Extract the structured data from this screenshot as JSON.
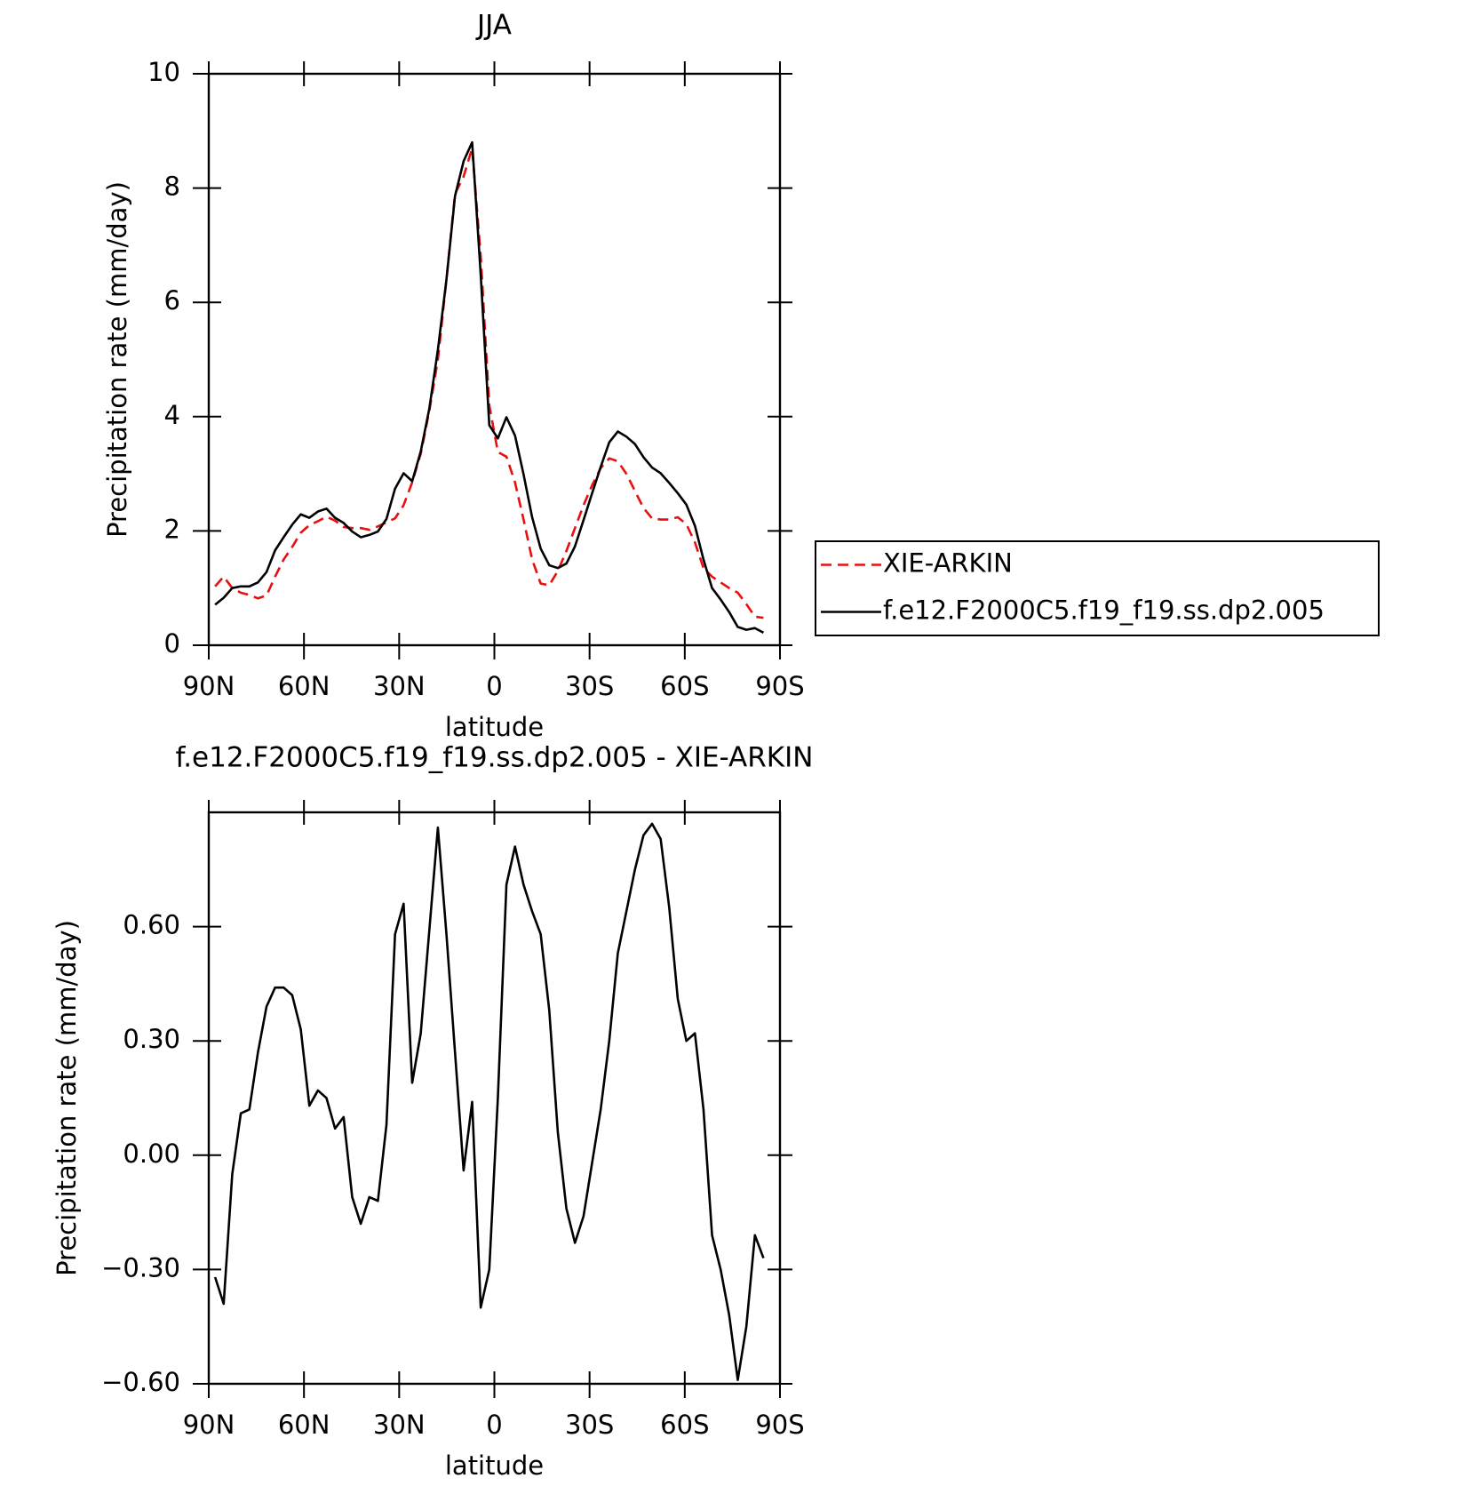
{
  "chart_data": [
    {
      "type": "line",
      "title": "JJA",
      "xlabel": "latitude",
      "ylabel": "Precipitation rate (mm/day)",
      "x": [
        88,
        85.3,
        82.6,
        79.9,
        77.2,
        74.5,
        71.8,
        69.1,
        66.4,
        63.7,
        61,
        58.3,
        55.6,
        52.9,
        50.2,
        47.5,
        44.8,
        42.1,
        39.4,
        36.7,
        34,
        31.3,
        28.6,
        25.9,
        23.2,
        20.5,
        17.8,
        15.1,
        12.4,
        9.7,
        7,
        4.3,
        1.6,
        -1.1,
        -3.8,
        -6.5,
        -9.2,
        -11.9,
        -14.6,
        -17.3,
        -20,
        -22.7,
        -25.4,
        -28.1,
        -30.8,
        -33.5,
        -36.2,
        -38.9,
        -41.6,
        -44.3,
        -47,
        -49.7,
        -52.4,
        -55.1,
        -57.8,
        -60.5,
        -63.2,
        -65.9,
        -68.6,
        -71.3,
        -74,
        -76.7,
        -79.4,
        -82.1,
        -84.8
      ],
      "series": [
        {
          "name": "XIE-ARKIN",
          "color": "#e8100f",
          "dash": true,
          "values": [
            1.03,
            1.2,
            1.0,
            0.92,
            0.88,
            0.82,
            0.87,
            1.2,
            1.5,
            1.72,
            1.97,
            2.1,
            2.17,
            2.25,
            2.18,
            2.07,
            2.05,
            2.05,
            2.02,
            2.08,
            2.15,
            2.22,
            2.45,
            2.85,
            3.35,
            4.1,
            5.0,
            6.4,
            7.9,
            8.2,
            8.7,
            6.8,
            4.2,
            3.38,
            3.3,
            2.85,
            2.2,
            1.5,
            1.08,
            1.05,
            1.3,
            1.65,
            2.05,
            2.45,
            2.8,
            3.1,
            3.27,
            3.22,
            3.0,
            2.7,
            2.4,
            2.22,
            2.2,
            2.2,
            2.24,
            2.12,
            1.8,
            1.35,
            1.2,
            1.1,
            1.0,
            0.92,
            0.72,
            0.5,
            0.48
          ]
        },
        {
          "name": "f.e12.F2000C5.f19_f19.ss.dp2.005",
          "color": "#000000",
          "dash": false,
          "values": [
            0.71,
            0.83,
            1.0,
            1.03,
            1.03,
            1.1,
            1.28,
            1.66,
            1.89,
            2.11,
            2.29,
            2.23,
            2.34,
            2.39,
            2.23,
            2.14,
            1.99,
            1.89,
            1.93,
            1.99,
            2.21,
            2.74,
            3.01,
            2.87,
            3.39,
            4.14,
            5.17,
            6.4,
            7.86,
            8.47,
            8.8,
            6.48,
            3.85,
            3.62,
            3.99,
            3.67,
            2.99,
            2.24,
            1.69,
            1.4,
            1.35,
            1.43,
            1.73,
            2.19,
            2.66,
            3.12,
            3.55,
            3.74,
            3.65,
            3.52,
            3.29,
            3.11,
            3.01,
            2.84,
            2.66,
            2.46,
            2.09,
            1.5,
            1.0,
            0.8,
            0.58,
            0.32,
            0.27,
            0.3,
            0.22
          ]
        }
      ],
      "xlim": [
        90,
        -90
      ],
      "xticks": [
        {
          "value": 90,
          "label": "90N"
        },
        {
          "value": 60,
          "label": "60N"
        },
        {
          "value": 30,
          "label": "30N"
        },
        0,
        {
          "value": -30,
          "label": "30S"
        },
        {
          "value": -60,
          "label": "60S"
        },
        {
          "value": -90,
          "label": "90S"
        }
      ],
      "ylim": [
        0,
        10
      ],
      "yticks": [
        0,
        2,
        4,
        6,
        8,
        10
      ],
      "legend": "right"
    },
    {
      "type": "line",
      "title": "f.e12.F2000C5.f19_f19.ss.dp2.005 - XIE-ARKIN",
      "xlabel": "latitude",
      "ylabel": "Precipitation rate (mm/day)",
      "x": [
        88,
        85.3,
        82.6,
        79.9,
        77.2,
        74.5,
        71.8,
        69.1,
        66.4,
        63.7,
        61,
        58.3,
        55.6,
        52.9,
        50.2,
        47.5,
        44.8,
        42.1,
        39.4,
        36.7,
        34,
        31.3,
        28.6,
        25.9,
        23.2,
        20.5,
        17.8,
        15.1,
        12.4,
        9.7,
        7,
        4.3,
        1.6,
        -1.1,
        -3.8,
        -6.5,
        -9.2,
        -11.9,
        -14.6,
        -17.3,
        -20,
        -22.7,
        -25.4,
        -28.1,
        -30.8,
        -33.5,
        -36.2,
        -38.9,
        -41.6,
        -44.3,
        -47,
        -49.7,
        -52.4,
        -55.1,
        -57.8,
        -60.5,
        -63.2,
        -65.9,
        -68.6,
        -71.3,
        -74,
        -76.7,
        -79.4,
        -82.1,
        -84.8
      ],
      "series": [
        {
          "color": "#000000",
          "dash": false,
          "values": [
            -0.32,
            -0.39,
            -0.05,
            0.11,
            0.12,
            0.27,
            0.39,
            0.44,
            0.44,
            0.42,
            0.33,
            0.13,
            0.17,
            0.15,
            0.07,
            0.1,
            -0.11,
            -0.18,
            -0.11,
            -0.12,
            0.08,
            0.58,
            0.66,
            0.19,
            0.32,
            0.59,
            0.86,
            0.58,
            0.27,
            -0.04,
            0.14,
            -0.4,
            -0.3,
            0.15,
            0.71,
            0.81,
            0.71,
            0.64,
            0.58,
            0.38,
            0.06,
            -0.14,
            -0.23,
            -0.16,
            -0.02,
            0.12,
            0.3,
            0.53,
            0.64,
            0.75,
            0.84,
            0.87,
            0.83,
            0.65,
            0.41,
            0.3,
            0.32,
            0.12,
            -0.21,
            -0.3,
            -0.42,
            -0.59,
            -0.45,
            -0.21,
            -0.27
          ]
        }
      ],
      "xlim": [
        90,
        -90
      ],
      "xticks": [
        {
          "value": 90,
          "label": "90N"
        },
        {
          "value": 60,
          "label": "60N"
        },
        {
          "value": 30,
          "label": "30N"
        },
        0,
        {
          "value": -30,
          "label": "30S"
        },
        {
          "value": -60,
          "label": "60S"
        },
        {
          "value": -90,
          "label": "90S"
        }
      ],
      "ylim": [
        -0.6,
        0.9
      ],
      "yticks": [
        {
          "value": -0.6,
          "label": "−0.60"
        },
        {
          "value": -0.3,
          "label": "−0.30"
        },
        {
          "value": 0,
          "label": "0.00"
        },
        {
          "value": 0.3,
          "label": "0.30"
        },
        {
          "value": 0.6,
          "label": "0.60"
        }
      ]
    }
  ]
}
